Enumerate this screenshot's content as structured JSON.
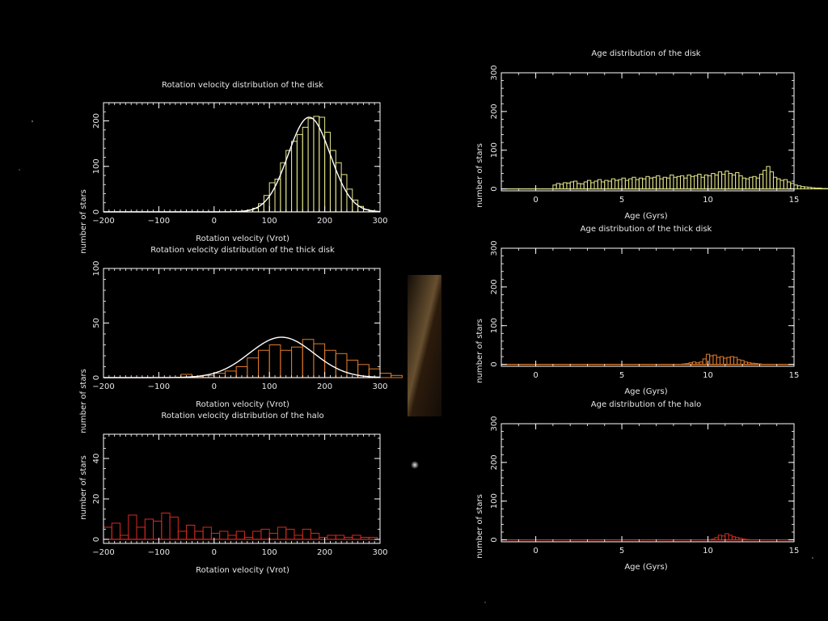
{
  "colors": {
    "background": "#000000",
    "axes": "#ffffff",
    "fit_curve": "#ffffff",
    "disk": "#e6e68a",
    "thick_disk": "#e07a2a",
    "halo": "#d42a1e"
  },
  "chart_data": [
    {
      "id": "vrot-disk",
      "type": "bar",
      "title": "Rotation velocity distribution of the disk",
      "xlabel": "Rotation velocity (Vrot)",
      "ylabel": "number of stars",
      "xlim": [
        -200,
        300
      ],
      "ylim": [
        0,
        240
      ],
      "xticks": [
        -200,
        -100,
        0,
        100,
        200,
        300
      ],
      "xtick_labels": [
        "−200",
        "−100",
        "0",
        "100",
        "200",
        "300"
      ],
      "yticks": [
        0,
        100,
        200
      ],
      "ytick_labels": [
        "0",
        "100",
        "200"
      ],
      "minor_x": 10,
      "minor_y": 20,
      "color": "disk",
      "bin_start": 50,
      "bin_width": 10,
      "values": [
        2,
        4,
        8,
        18,
        36,
        64,
        72,
        108,
        135,
        155,
        170,
        186,
        205,
        210,
        208,
        175,
        135,
        108,
        82,
        50,
        26,
        12,
        5,
        2,
        1
      ],
      "fit": {
        "amplitude": 208,
        "mean": 172,
        "sigma": 38
      }
    },
    {
      "id": "vrot-thick",
      "type": "bar",
      "title": "Rotation velocity distribution of the thick disk",
      "xlabel": "Rotation velocity (Vrot)",
      "ylabel": "number of stars",
      "xlim": [
        -200,
        300
      ],
      "ylim": [
        0,
        100
      ],
      "xticks": [
        -200,
        -100,
        0,
        100,
        200,
        300
      ],
      "xtick_labels": [
        "−200",
        "−100",
        "0",
        "100",
        "200",
        "300"
      ],
      "yticks": [
        0,
        50,
        100
      ],
      "ytick_labels": [
        "0",
        "50",
        "100"
      ],
      "minor_x": 10,
      "minor_y": 10,
      "color": "thick_disk",
      "bin_start": -60,
      "bin_width": 20,
      "values": [
        3,
        1,
        2,
        4,
        6,
        10,
        18,
        25,
        30,
        25,
        28,
        35,
        31,
        25,
        22,
        16,
        12,
        8,
        4,
        2
      ],
      "fit": {
        "amplitude": 37,
        "mean": 122,
        "sigma": 58
      }
    },
    {
      "id": "vrot-halo",
      "type": "bar",
      "title": "Rotation velocity distribution of the halo",
      "xlabel": "Rotation velocity (Vrot)",
      "ylabel": "number of stars",
      "xlim": [
        -200,
        300
      ],
      "ylim": [
        -2,
        52
      ],
      "xticks": [
        -200,
        -100,
        0,
        100,
        200,
        300
      ],
      "xtick_labels": [
        "−200",
        "−100",
        "0",
        "100",
        "200",
        "300"
      ],
      "yticks": [
        0,
        20,
        40
      ],
      "ytick_labels": [
        "0",
        "20",
        "40"
      ],
      "minor_x": 10,
      "minor_y": 5,
      "color": "halo",
      "bin_start": -200,
      "bin_width": 15,
      "values": [
        6,
        8,
        2,
        12,
        6,
        10,
        9,
        13,
        11,
        4,
        7,
        4,
        6,
        3,
        4,
        2,
        4,
        1,
        4,
        5,
        3,
        6,
        5,
        2,
        5,
        3,
        1,
        2,
        2,
        1,
        2,
        1,
        1
      ]
    },
    {
      "id": "age-disk",
      "type": "bar",
      "title": "Age distribution of the disk",
      "xlabel": "Age (Gyrs)",
      "ylabel": "number of stars",
      "xlim": [
        -2,
        15
      ],
      "ylim": [
        -5,
        300
      ],
      "xticks": [
        0,
        5,
        10,
        15
      ],
      "xtick_labels": [
        "0",
        "5",
        "10",
        "15"
      ],
      "yticks": [
        0,
        100,
        200,
        300
      ],
      "ytick_labels": [
        "0",
        "100",
        "200",
        "300"
      ],
      "minor_x": 1,
      "minor_y": 20,
      "color": "disk",
      "bin_start": 1,
      "bin_width": 0.2,
      "values": [
        10,
        14,
        12,
        16,
        15,
        18,
        20,
        14,
        13,
        18,
        22,
        16,
        20,
        24,
        18,
        22,
        20,
        26,
        22,
        24,
        28,
        22,
        26,
        30,
        24,
        28,
        26,
        32,
        28,
        30,
        34,
        26,
        30,
        28,
        36,
        30,
        32,
        34,
        28,
        36,
        32,
        34,
        38,
        30,
        36,
        34,
        40,
        36,
        44,
        38,
        46,
        40,
        36,
        42,
        34,
        28,
        26,
        30,
        32,
        28,
        38,
        48,
        58,
        44,
        30,
        26,
        22,
        24,
        18,
        14,
        10,
        8,
        6,
        5,
        4,
        3,
        2,
        2,
        1,
        1,
        1,
        1,
        1,
        1,
        1,
        1
      ]
    },
    {
      "id": "age-thick",
      "type": "bar",
      "title": "Age distribution of the thick disk",
      "xlabel": "Age (Gyrs)",
      "ylabel": "number of stars",
      "xlim": [
        -2,
        15
      ],
      "ylim": [
        -5,
        300
      ],
      "xticks": [
        0,
        5,
        10,
        15
      ],
      "xtick_labels": [
        "0",
        "5",
        "10",
        "15"
      ],
      "yticks": [
        0,
        100,
        200,
        300
      ],
      "ytick_labels": [
        "0",
        "100",
        "200",
        "300"
      ],
      "minor_x": 1,
      "minor_y": 20,
      "color": "thick_disk",
      "bin_start": 8.5,
      "bin_width": 0.2,
      "values": [
        1,
        2,
        4,
        6,
        4,
        6,
        14,
        26,
        22,
        24,
        18,
        20,
        16,
        18,
        20,
        18,
        12,
        10,
        6,
        4,
        3,
        2,
        1
      ]
    },
    {
      "id": "age-halo",
      "type": "bar",
      "title": "Age distribution of the halo",
      "xlabel": "Age (Gyrs)",
      "ylabel": "number of stars",
      "xlim": [
        -2,
        15
      ],
      "ylim": [
        -5,
        300
      ],
      "xticks": [
        0,
        5,
        10,
        15
      ],
      "xtick_labels": [
        "0",
        "5",
        "10",
        "15"
      ],
      "yticks": [
        0,
        100,
        200,
        300
      ],
      "ytick_labels": [
        "0",
        "100",
        "200",
        "300"
      ],
      "minor_x": 1,
      "minor_y": 20,
      "color": "halo",
      "bin_start": 10.2,
      "bin_width": 0.2,
      "values": [
        2,
        6,
        12,
        10,
        16,
        12,
        8,
        6,
        4,
        2,
        1
      ]
    }
  ]
}
